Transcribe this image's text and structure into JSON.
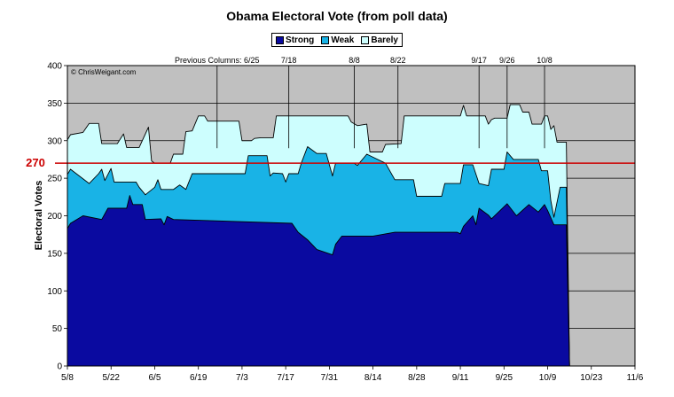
{
  "chart_data": {
    "type": "area",
    "title": "Obama Electoral Vote (from poll data)",
    "ylabel": "Electoral Votes",
    "xlabel": "",
    "ylim": [
      0,
      400
    ],
    "yticks": [
      0,
      50,
      100,
      150,
      200,
      250,
      300,
      350,
      400
    ],
    "x_tick_labels": [
      "5/8",
      "5/22",
      "6/5",
      "6/19",
      "7/3",
      "7/17",
      "7/31",
      "8/14",
      "8/28",
      "9/11",
      "9/25",
      "10/9",
      "10/23",
      "11/6"
    ],
    "x_tick_days": [
      0,
      14,
      28,
      42,
      56,
      70,
      84,
      98,
      112,
      126,
      140,
      154,
      168,
      182
    ],
    "x_range_days": [
      0,
      182
    ],
    "stacking": "cumulative",
    "series": [
      {
        "name": "Strong",
        "color": "#0a0aa0",
        "cumulative": true,
        "points": [
          [
            0,
            183
          ],
          [
            1,
            190
          ],
          [
            5,
            200
          ],
          [
            11,
            195
          ],
          [
            13,
            210
          ],
          [
            19,
            210
          ],
          [
            20,
            227
          ],
          [
            21,
            215
          ],
          [
            24,
            215
          ],
          [
            25,
            195
          ],
          [
            30,
            196
          ],
          [
            31,
            188
          ],
          [
            32,
            199
          ],
          [
            34,
            195
          ],
          [
            72,
            190
          ],
          [
            74,
            178
          ],
          [
            77,
            168
          ],
          [
            80,
            155
          ],
          [
            85,
            148
          ],
          [
            86,
            162
          ],
          [
            88,
            173
          ],
          [
            98,
            173
          ],
          [
            105,
            178
          ],
          [
            125,
            178
          ],
          [
            126,
            176
          ],
          [
            127,
            186
          ],
          [
            130,
            200
          ],
          [
            131,
            188
          ],
          [
            132,
            210
          ],
          [
            135,
            201
          ],
          [
            136,
            196
          ],
          [
            141,
            216
          ],
          [
            144,
            200
          ],
          [
            148,
            215
          ],
          [
            151,
            205
          ],
          [
            153,
            215
          ],
          [
            154,
            207
          ],
          [
            156,
            188
          ],
          [
            160,
            188
          ],
          [
            161,
            0
          ],
          [
            182,
            0
          ]
        ]
      },
      {
        "name": "Weak",
        "color": "#19b3e6",
        "cumulative": true,
        "points": [
          [
            0,
            255
          ],
          [
            1,
            262
          ],
          [
            7,
            243
          ],
          [
            10,
            256
          ],
          [
            11,
            262
          ],
          [
            12,
            247
          ],
          [
            14,
            263
          ],
          [
            15,
            245
          ],
          [
            22,
            245
          ],
          [
            23,
            238
          ],
          [
            25,
            228
          ],
          [
            28,
            238
          ],
          [
            29,
            248
          ],
          [
            30,
            235
          ],
          [
            34,
            235
          ],
          [
            36,
            241
          ],
          [
            38,
            235
          ],
          [
            40,
            256
          ],
          [
            57,
            256
          ],
          [
            58,
            280
          ],
          [
            64,
            280
          ],
          [
            65,
            253
          ],
          [
            66,
            257
          ],
          [
            69,
            256
          ],
          [
            70,
            245
          ],
          [
            71,
            256
          ],
          [
            74,
            256
          ],
          [
            75,
            270
          ],
          [
            77,
            292
          ],
          [
            80,
            283
          ],
          [
            83,
            283
          ],
          [
            85,
            253
          ],
          [
            86,
            270
          ],
          [
            92,
            270
          ],
          [
            93,
            267
          ],
          [
            96,
            282
          ],
          [
            98,
            278
          ],
          [
            102,
            270
          ],
          [
            105,
            248
          ],
          [
            111,
            248
          ],
          [
            112,
            226
          ],
          [
            120,
            226
          ],
          [
            121,
            243
          ],
          [
            126,
            243
          ],
          [
            127,
            268
          ],
          [
            130,
            268
          ],
          [
            132,
            243
          ],
          [
            135,
            240
          ],
          [
            136,
            262
          ],
          [
            140,
            262
          ],
          [
            141,
            285
          ],
          [
            143,
            275
          ],
          [
            151,
            275
          ],
          [
            152,
            260
          ],
          [
            154,
            260
          ],
          [
            155,
            220
          ],
          [
            156,
            198
          ],
          [
            158,
            238
          ],
          [
            160,
            238
          ],
          [
            161,
            0
          ],
          [
            182,
            0
          ]
        ]
      },
      {
        "name": "Barely",
        "color": "#cdfefe",
        "cumulative": true,
        "points": [
          [
            0,
            301
          ],
          [
            1,
            308
          ],
          [
            5,
            311
          ],
          [
            7,
            323
          ],
          [
            10,
            323
          ],
          [
            11,
            296
          ],
          [
            16,
            296
          ],
          [
            18,
            309
          ],
          [
            19,
            291
          ],
          [
            23,
            291
          ],
          [
            26,
            318
          ],
          [
            27,
            273
          ],
          [
            28,
            270
          ],
          [
            33,
            270
          ],
          [
            34,
            282
          ],
          [
            37,
            282
          ],
          [
            38,
            312
          ],
          [
            40,
            313
          ],
          [
            42,
            333
          ],
          [
            44,
            333
          ],
          [
            45,
            326
          ],
          [
            55,
            326
          ],
          [
            56,
            300
          ],
          [
            59,
            300
          ],
          [
            60,
            303
          ],
          [
            62,
            304
          ],
          [
            66,
            304
          ],
          [
            67,
            333
          ],
          [
            77,
            333
          ],
          [
            82,
            333
          ],
          [
            90,
            333
          ],
          [
            91,
            325
          ],
          [
            93,
            320
          ],
          [
            96,
            322
          ],
          [
            97,
            285
          ],
          [
            101,
            285
          ],
          [
            102,
            295
          ],
          [
            107,
            296
          ],
          [
            108,
            333
          ],
          [
            126,
            333
          ],
          [
            127,
            347
          ],
          [
            128,
            333
          ],
          [
            134,
            333
          ],
          [
            135,
            322
          ],
          [
            136,
            328
          ],
          [
            137,
            330
          ],
          [
            141,
            330
          ],
          [
            142,
            348
          ],
          [
            145,
            348
          ],
          [
            146,
            338
          ],
          [
            148,
            338
          ],
          [
            149,
            322
          ],
          [
            152,
            322
          ],
          [
            153,
            333
          ],
          [
            154,
            333
          ],
          [
            155,
            315
          ],
          [
            156,
            320
          ],
          [
            157,
            298
          ],
          [
            160,
            298
          ],
          [
            161,
            0
          ],
          [
            182,
            0
          ]
        ]
      }
    ],
    "reference_line": {
      "value": 270,
      "label": "270",
      "color": "#cc0000"
    },
    "vertical_markers": [
      {
        "day": 48,
        "label": "Previous Columns: 6/25"
      },
      {
        "day": 71,
        "label": "7/18"
      },
      {
        "day": 92,
        "label": "8/8"
      },
      {
        "day": 106,
        "label": "8/22"
      },
      {
        "day": 132,
        "label": "9/17"
      },
      {
        "day": 141,
        "label": "9/26"
      },
      {
        "day": 153,
        "label": "10/8"
      }
    ],
    "watermark": "© ChrisWeigant.com",
    "grid": true,
    "legend_position": "top-center",
    "plot_background": "#c0c0c0"
  }
}
